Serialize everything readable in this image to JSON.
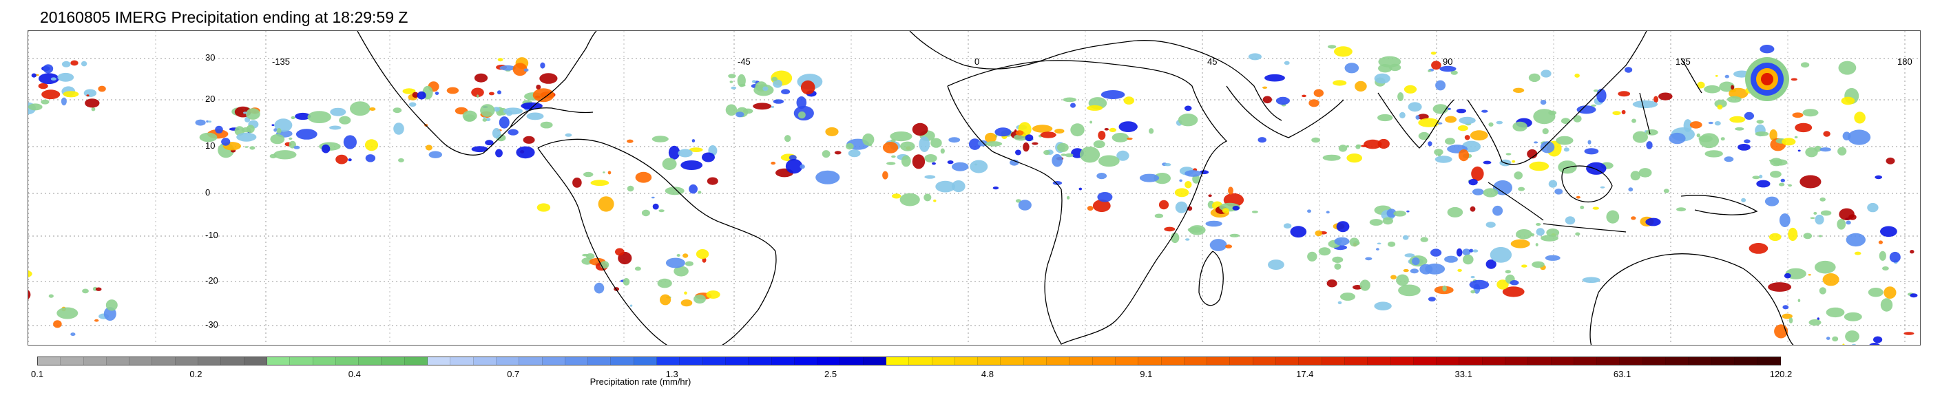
{
  "title": "20160805 IMERG Precipitation ending at 18:29:59 Z",
  "map": {
    "lon_labels": [
      "-135",
      "-45",
      "0",
      "45",
      "90",
      "135",
      "180"
    ],
    "lat_labels": [
      "30",
      "20",
      "10",
      "0",
      "-10",
      "-20",
      "-30"
    ],
    "land_outline_color": "#000000",
    "grid_line": "dotted"
  },
  "colorbar": {
    "title": "Precipitation rate (mm/hr)",
    "tick_labels": [
      "0.1",
      "0.2",
      "0.4",
      "0.7",
      "1.3",
      "2.5",
      "4.8",
      "9.1",
      "17.4",
      "33.1",
      "63.1",
      "120.2"
    ],
    "colors": [
      "#b5b5b5",
      "#adadad",
      "#a5a5a5",
      "#9d9d9d",
      "#959595",
      "#8d8d8d",
      "#858585",
      "#7d7d7d",
      "#757575",
      "#6d6d6d",
      "#8ee28e",
      "#86db86",
      "#7ed57e",
      "#77ce77",
      "#6fc86f",
      "#68c168",
      "#60bb60",
      "#c4d6f8",
      "#b5cbf6",
      "#a5c0f4",
      "#95b5f2",
      "#86aaf0",
      "#769ff0",
      "#6694ee",
      "#5789ec",
      "#477fea",
      "#3774e8",
      "#1a40f5",
      "#1637f4",
      "#122ef3",
      "#0e25f2",
      "#0a1cf0",
      "#0613ef",
      "#020aee",
      "#0000e8",
      "#0000d8",
      "#0000c8",
      "#fff200",
      "#ffe600",
      "#ffda00",
      "#ffce00",
      "#ffc200",
      "#ffb600",
      "#ffaa00",
      "#ff9e00",
      "#ff9200",
      "#ff8a00",
      "#ff8000",
      "#fb7600",
      "#f86c00",
      "#f46200",
      "#f05800",
      "#ec4e00",
      "#e84400",
      "#e43a00",
      "#e03000",
      "#dc2600",
      "#d81c00",
      "#d41200",
      "#cf0a00",
      "#c60000",
      "#bb0000",
      "#b00000",
      "#a50000",
      "#9a0000",
      "#8f0000",
      "#860000",
      "#7c0000",
      "#720000",
      "#680000",
      "#5e0000",
      "#560000",
      "#4e0000",
      "#470000",
      "#400000",
      "#3a0000"
    ],
    "tick_positions_fraction": [
      0,
      0.091,
      0.182,
      0.273,
      0.364,
      0.455,
      0.545,
      0.636,
      0.727,
      0.818,
      0.909,
      1.0
    ]
  }
}
